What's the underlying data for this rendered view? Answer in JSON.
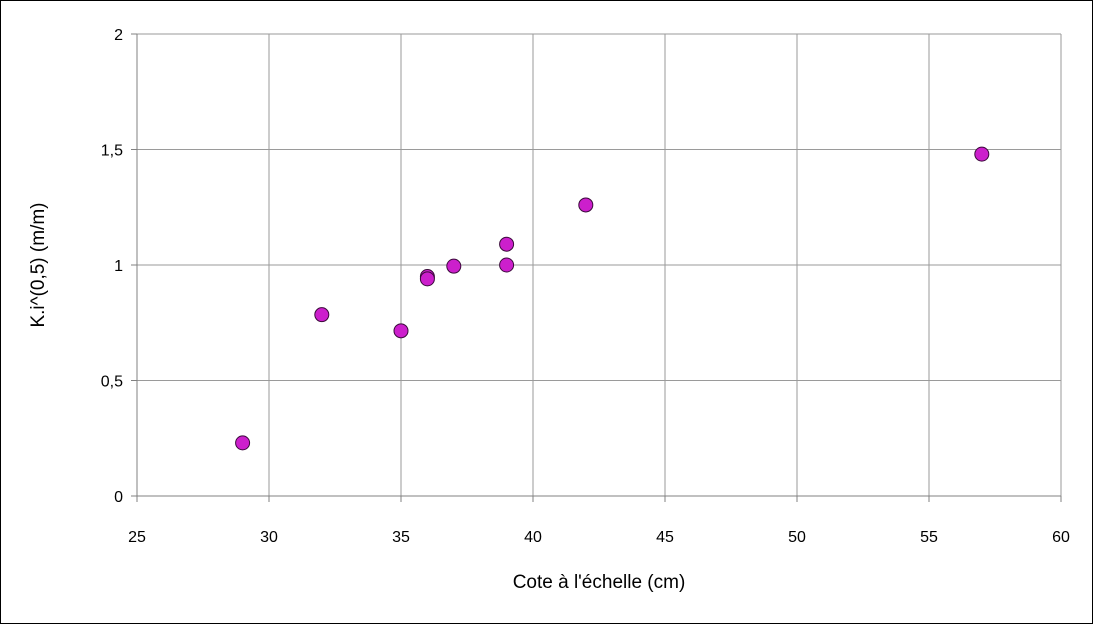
{
  "chart_data": {
    "type": "scatter",
    "title": "",
    "xlabel": "Cote à l'échelle (cm)",
    "ylabel": "K.i^(0,5) (m/m)",
    "xlim": [
      25,
      60
    ],
    "ylim": [
      0,
      2
    ],
    "x_ticks": [
      25,
      30,
      35,
      40,
      45,
      50,
      55,
      60
    ],
    "x_tick_labels": [
      "25",
      "30",
      "35",
      "40",
      "45",
      "50",
      "55",
      "60"
    ],
    "y_ticks": [
      0,
      0.5,
      1,
      1.5,
      2
    ],
    "y_tick_labels": [
      "0",
      "0,5",
      "1",
      "1,5",
      "2"
    ],
    "grid": true,
    "legend": "none",
    "marker_color": "#cc1fcc",
    "marker_edge_color": "#3a0a3a",
    "grid_color": "#9a9a9a",
    "series": [
      {
        "points": [
          {
            "x": 29,
            "y": 0.23
          },
          {
            "x": 32,
            "y": 0.785
          },
          {
            "x": 35,
            "y": 0.715
          },
          {
            "x": 36,
            "y": 0.95
          },
          {
            "x": 36,
            "y": 0.94
          },
          {
            "x": 37,
            "y": 0.995
          },
          {
            "x": 39,
            "y": 1.0
          },
          {
            "x": 39,
            "y": 1.09
          },
          {
            "x": 42,
            "y": 1.26
          },
          {
            "x": 57,
            "y": 1.48
          }
        ]
      }
    ]
  }
}
